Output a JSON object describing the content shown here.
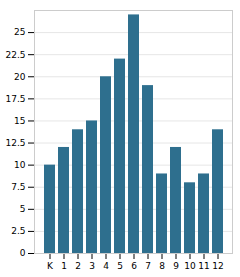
{
  "chart_data": {
    "type": "bar",
    "categories": [
      "K",
      "1",
      "2",
      "3",
      "4",
      "5",
      "6",
      "7",
      "8",
      "9",
      "10",
      "11",
      "12"
    ],
    "values": [
      10,
      12,
      14,
      15,
      20,
      22,
      27,
      19,
      9,
      12,
      8,
      9,
      14
    ],
    "color": "#2e6f8e",
    "ylim": [
      0,
      27.5
    ],
    "yticks": [
      0,
      2.5,
      5,
      7.5,
      10,
      12.5,
      15,
      17.5,
      20,
      22.5,
      25
    ],
    "grid": true
  }
}
